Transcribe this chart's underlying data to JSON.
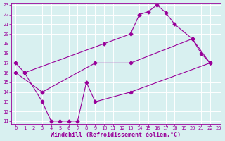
{
  "xlabel": "Windchill (Refroidissement éolien,°C)",
  "ylabel": "",
  "line1_x": [
    0,
    1,
    10,
    13,
    14,
    15,
    16,
    17,
    18,
    20,
    21,
    22
  ],
  "line1_y": [
    17,
    16,
    19,
    20,
    22,
    22.3,
    23,
    22.2,
    21,
    19.5,
    18,
    17
  ],
  "line2_x": [
    0,
    3,
    9,
    13,
    20,
    22
  ],
  "line2_y": [
    16,
    14,
    17,
    17,
    19.5,
    17
  ],
  "line3_x": [
    1,
    3,
    4,
    5,
    6,
    7,
    8,
    9,
    13,
    22
  ],
  "line3_y": [
    16,
    13,
    11,
    11,
    11,
    11,
    15,
    13,
    14,
    17
  ],
  "line_color": "#990099",
  "marker": "D",
  "marker_size": 2.5,
  "xlim": [
    -0.5,
    23.2
  ],
  "ylim": [
    10.7,
    23.2
  ],
  "xticks": [
    0,
    1,
    2,
    3,
    4,
    5,
    6,
    7,
    8,
    9,
    10,
    11,
    12,
    13,
    14,
    15,
    16,
    17,
    18,
    19,
    20,
    21,
    22,
    23
  ],
  "yticks": [
    11,
    12,
    13,
    14,
    15,
    16,
    17,
    18,
    19,
    20,
    21,
    22,
    23
  ],
  "bg_color": "#d8f0f0",
  "grid_color": "#b8dce0",
  "tick_color": "#990099",
  "label_color": "#990099",
  "tick_fontsize": 5.0,
  "xlabel_fontsize": 6.0
}
